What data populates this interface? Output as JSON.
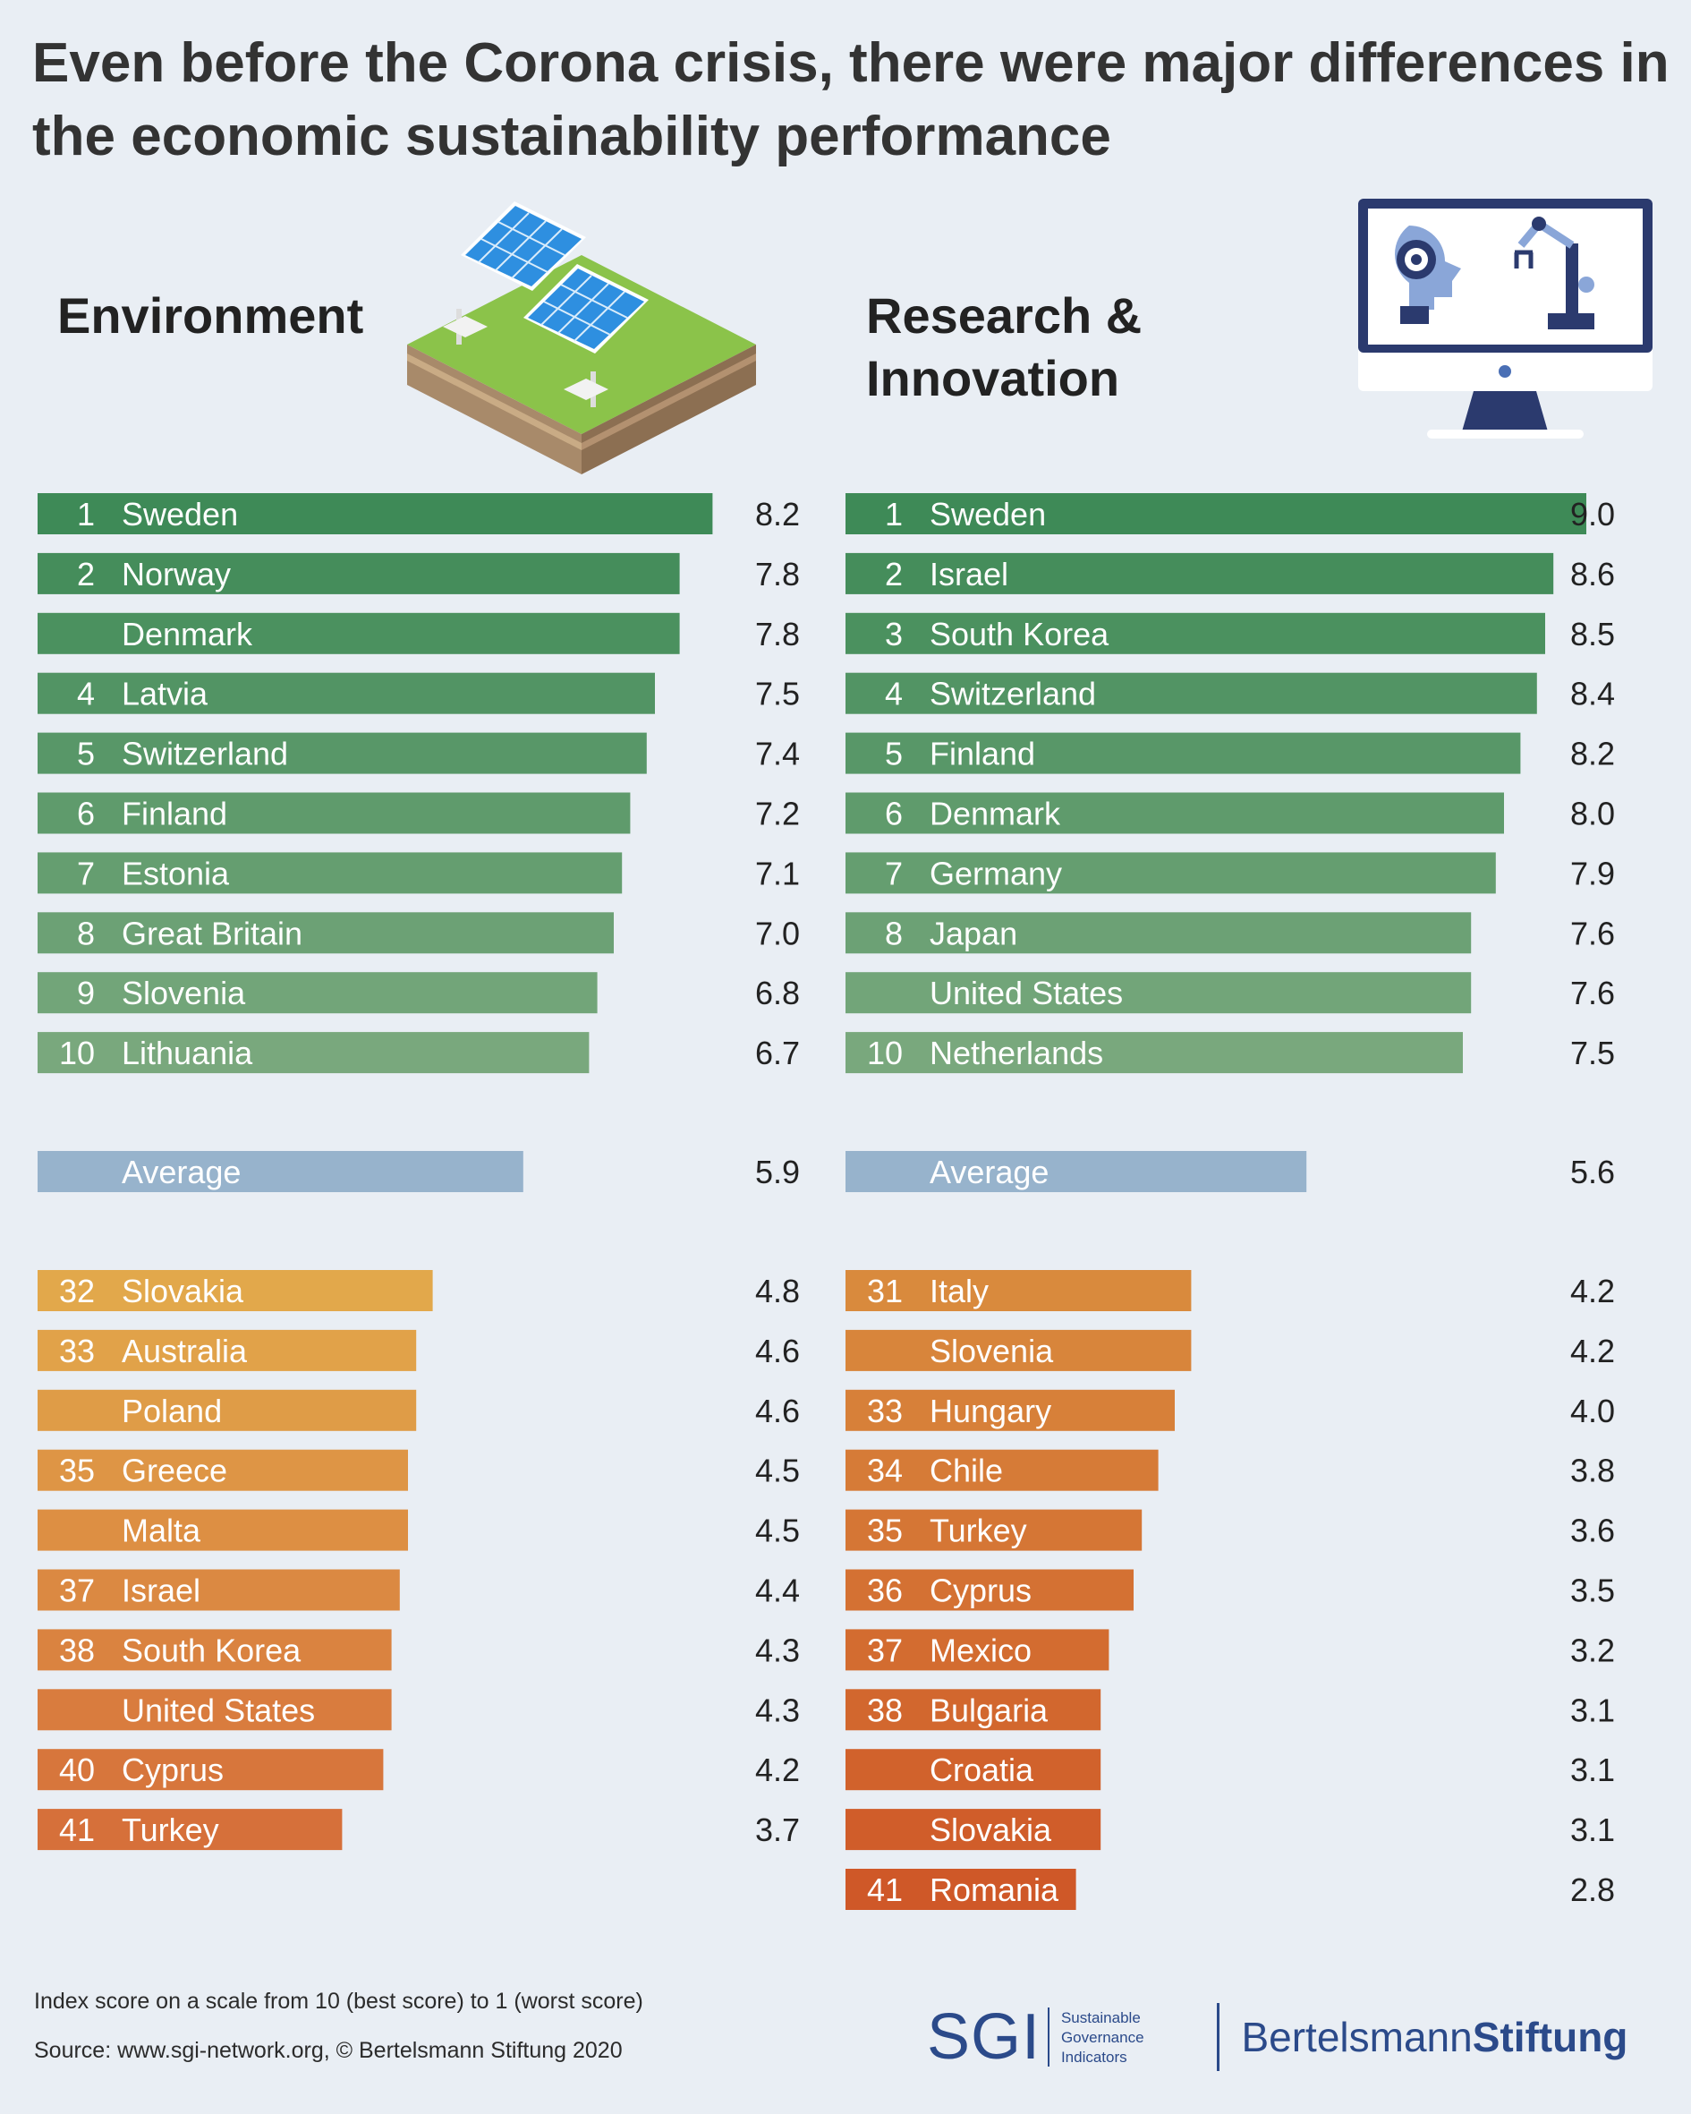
{
  "title": "Even before the Corona crisis, there were major differences in the economic sustainability performance",
  "chart_data": [
    {
      "type": "bar",
      "title": "Environment",
      "orientation": "horizontal",
      "top": [
        {
          "rank": "1",
          "country": "Sweden",
          "value": 8.2
        },
        {
          "rank": "2",
          "country": "Norway",
          "value": 7.8
        },
        {
          "rank": "",
          "country": "Denmark",
          "value": 7.8
        },
        {
          "rank": "4",
          "country": "Latvia",
          "value": 7.5
        },
        {
          "rank": "5",
          "country": "Switzerland",
          "value": 7.4
        },
        {
          "rank": "6",
          "country": "Finland",
          "value": 7.2
        },
        {
          "rank": "7",
          "country": "Estonia",
          "value": 7.1
        },
        {
          "rank": "8",
          "country": "Great Britain",
          "value": 7.0
        },
        {
          "rank": "9",
          "country": "Slovenia",
          "value": 6.8
        },
        {
          "rank": "10",
          "country": "Lithuania",
          "value": 6.7
        }
      ],
      "average": {
        "label": "Average",
        "value": 5.9
      },
      "bottom": [
        {
          "rank": "32",
          "country": "Slovakia",
          "value": 4.8
        },
        {
          "rank": "33",
          "country": "Australia",
          "value": 4.6
        },
        {
          "rank": "",
          "country": "Poland",
          "value": 4.6
        },
        {
          "rank": "35",
          "country": "Greece",
          "value": 4.5
        },
        {
          "rank": "",
          "country": "Malta",
          "value": 4.5
        },
        {
          "rank": "37",
          "country": "Israel",
          "value": 4.4
        },
        {
          "rank": "38",
          "country": "South Korea",
          "value": 4.3
        },
        {
          "rank": "",
          "country": "United States",
          "value": 4.3
        },
        {
          "rank": "40",
          "country": "Cyprus",
          "value": 4.2
        },
        {
          "rank": "41",
          "country": "Turkey",
          "value": 3.7
        }
      ]
    },
    {
      "type": "bar",
      "title": "Research & Innovation",
      "orientation": "horizontal",
      "top": [
        {
          "rank": "1",
          "country": "Sweden",
          "value": 9.0
        },
        {
          "rank": "2",
          "country": "Israel",
          "value": 8.6
        },
        {
          "rank": "3",
          "country": "South Korea",
          "value": 8.5
        },
        {
          "rank": "4",
          "country": "Switzerland",
          "value": 8.4
        },
        {
          "rank": "5",
          "country": "Finland",
          "value": 8.2
        },
        {
          "rank": "6",
          "country": "Denmark",
          "value": 8.0
        },
        {
          "rank": "7",
          "country": "Germany",
          "value": 7.9
        },
        {
          "rank": "8",
          "country": "Japan",
          "value": 7.6
        },
        {
          "rank": "",
          "country": "United States",
          "value": 7.6
        },
        {
          "rank": "10",
          "country": "Netherlands",
          "value": 7.5
        }
      ],
      "average": {
        "label": "Average",
        "value": 5.6
      },
      "bottom": [
        {
          "rank": "31",
          "country": "Italy",
          "value": 4.2
        },
        {
          "rank": "",
          "country": "Slovenia",
          "value": 4.2
        },
        {
          "rank": "33",
          "country": "Hungary",
          "value": 4.0
        },
        {
          "rank": "34",
          "country": "Chile",
          "value": 3.8
        },
        {
          "rank": "35",
          "country": "Turkey",
          "value": 3.6
        },
        {
          "rank": "36",
          "country": "Cyprus",
          "value": 3.5
        },
        {
          "rank": "37",
          "country": "Mexico",
          "value": 3.2
        },
        {
          "rank": "38",
          "country": "Bulgaria",
          "value": 3.1
        },
        {
          "rank": "",
          "country": "Croatia",
          "value": 3.1
        },
        {
          "rank": "",
          "country": "Slovakia",
          "value": 3.1
        },
        {
          "rank": "41",
          "country": "Romania",
          "value": 2.8
        }
      ]
    }
  ],
  "colors": {
    "top_dark": "#3e8a57",
    "top_light": "#79a87d",
    "average": "#97b3cc",
    "env_bottom_light": "#e2a84b",
    "env_bottom_dark": "#d6703a",
    "ri_bottom_light": "#d98a3d",
    "ri_bottom_dark": "#cf5828",
    "label_text": "#ffffff",
    "value_text": "#222222"
  },
  "footer": {
    "note": "Index score on a scale from 10 (best score) to 1 (worst score)",
    "source": "Source: www.sgi-network.org, © Bertelsmann Stiftung 2020"
  },
  "logos": {
    "sgi": {
      "mark": "SGI",
      "line1": "Sustainable",
      "line2": "Governance",
      "line3": "Indicators"
    },
    "bertelsmann": {
      "part1": "Bertelsmann",
      "part2": "Stiftung"
    }
  }
}
